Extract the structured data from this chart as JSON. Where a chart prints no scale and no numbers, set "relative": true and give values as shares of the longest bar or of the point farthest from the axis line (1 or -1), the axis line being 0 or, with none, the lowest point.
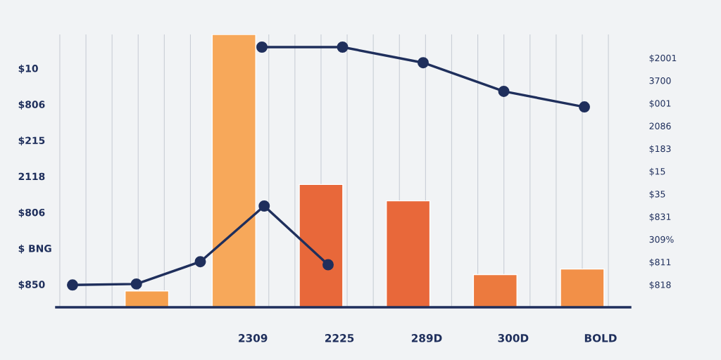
{
  "chart_data": [
    {
      "type": "bar",
      "relative": true,
      "categories": [
        null,
        null,
        null,
        null,
        null,
        null
      ],
      "colors": [
        "#f5a04e",
        "#f7a85a",
        "#e8683a",
        "#e8683a",
        "#ec7a3e",
        "#f29048"
      ],
      "values": [
        0.06,
        1.0,
        0.45,
        0.39,
        0.12,
        0.14
      ],
      "grid": true,
      "annotations": [
        "$10",
        "$806",
        "$215",
        "2118",
        "$806",
        "$ BNG",
        "$850",
        "$2001",
        "3700",
        "$001",
        "2086",
        "$183",
        "$15",
        "$35",
        "$831",
        "309%",
        "$811",
        "$818",
        "2309",
        "2225",
        "289D",
        "300D",
        "BOLD"
      ]
    },
    {
      "type": "line",
      "relative": true,
      "categories": [
        null,
        null,
        null,
        null,
        null
      ],
      "marker": "circle",
      "series": [
        {
          "color": "#1f2f5c",
          "values": [
            0.22,
            0.23,
            0.45,
            1.0,
            0.42
          ]
        }
      ]
    },
    {
      "type": "line",
      "relative": true,
      "categories": [
        null,
        null,
        null,
        null,
        null
      ],
      "marker": "circle",
      "series": [
        {
          "color": "#1f2f5c",
          "values": [
            1.0,
            1.0,
            0.94,
            0.83,
            0.77
          ]
        }
      ]
    }
  ]
}
